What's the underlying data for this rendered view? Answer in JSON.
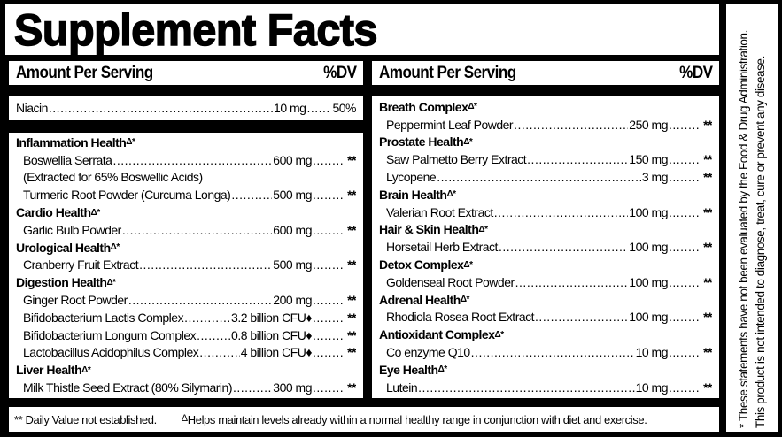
{
  "title": "Supplement Facts",
  "header": {
    "amount_label": "Amount Per Serving",
    "dv_label": "%DV"
  },
  "niacin": {
    "name": "Niacin",
    "amount": "10 mg",
    "dv": "50%"
  },
  "left_rows": [
    {
      "type": "heading",
      "label": "Inflammation Health",
      "mark": "Δ*"
    },
    {
      "type": "item",
      "name": "Boswellia Serrata",
      "amount": "600 mg",
      "dv": "**"
    },
    {
      "type": "note",
      "name": "(Extracted for 65% Boswellic Acids)"
    },
    {
      "type": "item",
      "name": "Turmeric Root Powder (Curcuma Longa)",
      "amount": "500 mg",
      "dv": "**"
    },
    {
      "type": "heading",
      "label": "Cardio Health",
      "mark": "Δ*"
    },
    {
      "type": "item",
      "name": "Garlic Bulb Powder",
      "amount": "600 mg",
      "dv": "**"
    },
    {
      "type": "heading",
      "label": "Urological Health",
      "mark": "Δ*"
    },
    {
      "type": "item",
      "name": "Cranberry Fruit Extract",
      "amount": "500 mg",
      "dv": "**"
    },
    {
      "type": "heading",
      "label": "Digestion Health",
      "mark": "Δ*"
    },
    {
      "type": "item",
      "name": "Ginger Root Powder",
      "amount": "200 mg",
      "dv": "**"
    },
    {
      "type": "item",
      "name": "Bifidobacterium Lactis Complex",
      "amount": "3.2 billion CFU♦",
      "dv": "**"
    },
    {
      "type": "item",
      "name": "Bifidobacterium Longum Complex",
      "amount": "0.8 billion CFU♦",
      "dv": "**"
    },
    {
      "type": "item",
      "name": "Lactobacillus Acidophilus Complex",
      "amount": "4 billion CFU♦",
      "dv": "**"
    },
    {
      "type": "heading",
      "label": "Liver Health",
      "mark": "Δ*"
    },
    {
      "type": "item",
      "name": "Milk Thistle Seed Extract (80% Silymarin)",
      "amount": "300 mg",
      "dv": "**"
    }
  ],
  "right_rows": [
    {
      "type": "heading",
      "label": "Breath Complex",
      "mark": "Δ*"
    },
    {
      "type": "item",
      "name": "Peppermint Leaf Powder",
      "amount": "250 mg",
      "dv": "**"
    },
    {
      "type": "heading",
      "label": "Prostate Health",
      "mark": "Δ*"
    },
    {
      "type": "item",
      "name": "Saw Palmetto Berry Extract",
      "amount": "150 mg",
      "dv": "**"
    },
    {
      "type": "item",
      "name": "Lycopene",
      "amount": "3 mg",
      "dv": "**"
    },
    {
      "type": "heading",
      "label": "Brain Health",
      "mark": "Δ*"
    },
    {
      "type": "item",
      "name": "Valerian Root Extract",
      "amount": "100 mg",
      "dv": "**"
    },
    {
      "type": "heading",
      "label": "Hair & Skin Health",
      "mark": "Δ*"
    },
    {
      "type": "item",
      "name": "Horsetail Herb Extract",
      "amount": "100 mg",
      "dv": "**"
    },
    {
      "type": "heading",
      "label": "Detox Complex",
      "mark": "Δ*"
    },
    {
      "type": "item",
      "name": "Goldenseal Root Powder",
      "amount": "100 mg",
      "dv": "**"
    },
    {
      "type": "heading",
      "label": "Adrenal Health",
      "mark": "Δ*"
    },
    {
      "type": "item",
      "name": "Rhodiola Rosea Root Extract",
      "amount": "100 mg",
      "dv": "**"
    },
    {
      "type": "heading",
      "label": "Antioxidant Complex",
      "mark": "Δ*"
    },
    {
      "type": "item",
      "name": "Co enzyme Q10",
      "amount": "10 mg",
      "dv": "**"
    },
    {
      "type": "heading",
      "label": "Eye Health",
      "mark": "Δ*"
    },
    {
      "type": "item",
      "name": "Lutein",
      "amount": "10 mg",
      "dv": "**"
    }
  ],
  "footer": {
    "dv_note": "** Daily Value not established.",
    "delta_mark": "Δ",
    "delta_note": "Helps maintain levels already within a normal healthy range in conjunction with diet and exercise."
  },
  "disclaimer": {
    "line1": "* These statements have not been evaluated by the Food & Drug Administration.",
    "line2": "This product is not intended to diagnose, treat, cure or prevent any disease."
  }
}
